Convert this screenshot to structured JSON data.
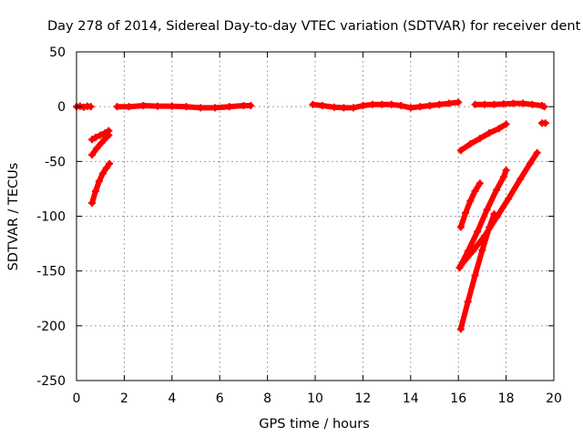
{
  "chart_data": {
    "type": "scatter",
    "title": "Day 278 of 2014, Sidereal Day-to-day VTEC variation (SDTVAR) for receiver dent",
    "xlabel": "GPS time / hours",
    "ylabel": "SDTVAR / TECUs",
    "xlim": [
      0,
      20
    ],
    "ylim": [
      -250,
      50
    ],
    "xticks": [
      0,
      2,
      4,
      6,
      8,
      10,
      12,
      14,
      16,
      18,
      20
    ],
    "yticks": [
      -250,
      -200,
      -150,
      -100,
      -50,
      0,
      50
    ],
    "grid": true,
    "legend": "none",
    "marker_color": "#ff0000",
    "series": [
      {
        "x": [
          0.0,
          0.15,
          0.3,
          0.45,
          0.6
        ],
        "y": [
          0,
          0.5,
          -0.5,
          0.5,
          0
        ]
      },
      {
        "x": [
          1.7,
          2.2,
          2.8,
          3.4,
          4.0,
          4.6,
          5.2,
          5.8,
          6.4,
          7.0,
          7.3
        ],
        "y": [
          0,
          0,
          1,
          0.5,
          0.5,
          0,
          -1,
          -1,
          0,
          1,
          1
        ]
      },
      {
        "x": [
          9.9,
          10.3,
          10.8,
          11.2,
          11.6,
          12.0,
          12.4,
          12.8,
          13.2,
          13.6,
          14.0,
          14.4,
          14.8,
          15.2,
          15.6,
          16.0
        ],
        "y": [
          2,
          1,
          -0.5,
          -1,
          -1,
          1,
          2,
          2,
          2,
          1,
          -1,
          0,
          1,
          2,
          3,
          4
        ]
      },
      {
        "x": [
          16.7,
          17.1,
          17.5,
          17.9,
          18.3,
          18.7,
          19.1,
          19.5,
          19.6
        ],
        "y": [
          2,
          2,
          2,
          2.5,
          3,
          3,
          2,
          1,
          0
        ]
      },
      {
        "x": [
          0.65,
          0.8,
          1.0,
          1.2,
          1.35
        ],
        "y": [
          -30,
          -28,
          -26,
          -24,
          -22
        ]
      },
      {
        "x": [
          0.65,
          0.85,
          1.05,
          1.25,
          1.35
        ],
        "y": [
          -44,
          -38,
          -33,
          -28,
          -26
        ]
      },
      {
        "x": [
          0.65,
          0.8,
          0.95,
          1.1,
          1.25,
          1.38
        ],
        "y": [
          -88,
          -77,
          -68,
          -61,
          -56,
          -52
        ]
      },
      {
        "x": [
          16.1,
          16.5,
          16.9,
          17.3,
          17.7,
          18.0
        ],
        "y": [
          -40,
          -34,
          -29,
          -24,
          -20,
          -16
        ]
      },
      {
        "x": [
          16.1,
          16.3,
          16.5,
          16.7,
          16.9
        ],
        "y": [
          -110,
          -97,
          -86,
          -77,
          -70
        ]
      },
      {
        "x": [
          16.05,
          16.4,
          16.8,
          17.2,
          17.6,
          17.9,
          18.0
        ],
        "y": [
          -147,
          -132,
          -114,
          -94,
          -76,
          -64,
          -58
        ]
      },
      {
        "x": [
          16.1,
          16.4,
          16.7,
          17.0,
          17.3,
          17.5
        ],
        "y": [
          -203,
          -178,
          -154,
          -131,
          -110,
          -98
        ]
      },
      {
        "x": [
          16.1,
          16.6,
          17.1,
          17.6,
          18.1,
          18.6,
          19.0,
          19.3
        ],
        "y": [
          -145,
          -132,
          -118,
          -101,
          -84,
          -66,
          -52,
          -42
        ]
      },
      {
        "x": [
          19.5,
          19.65
        ],
        "y": [
          -15,
          -15
        ]
      }
    ]
  }
}
